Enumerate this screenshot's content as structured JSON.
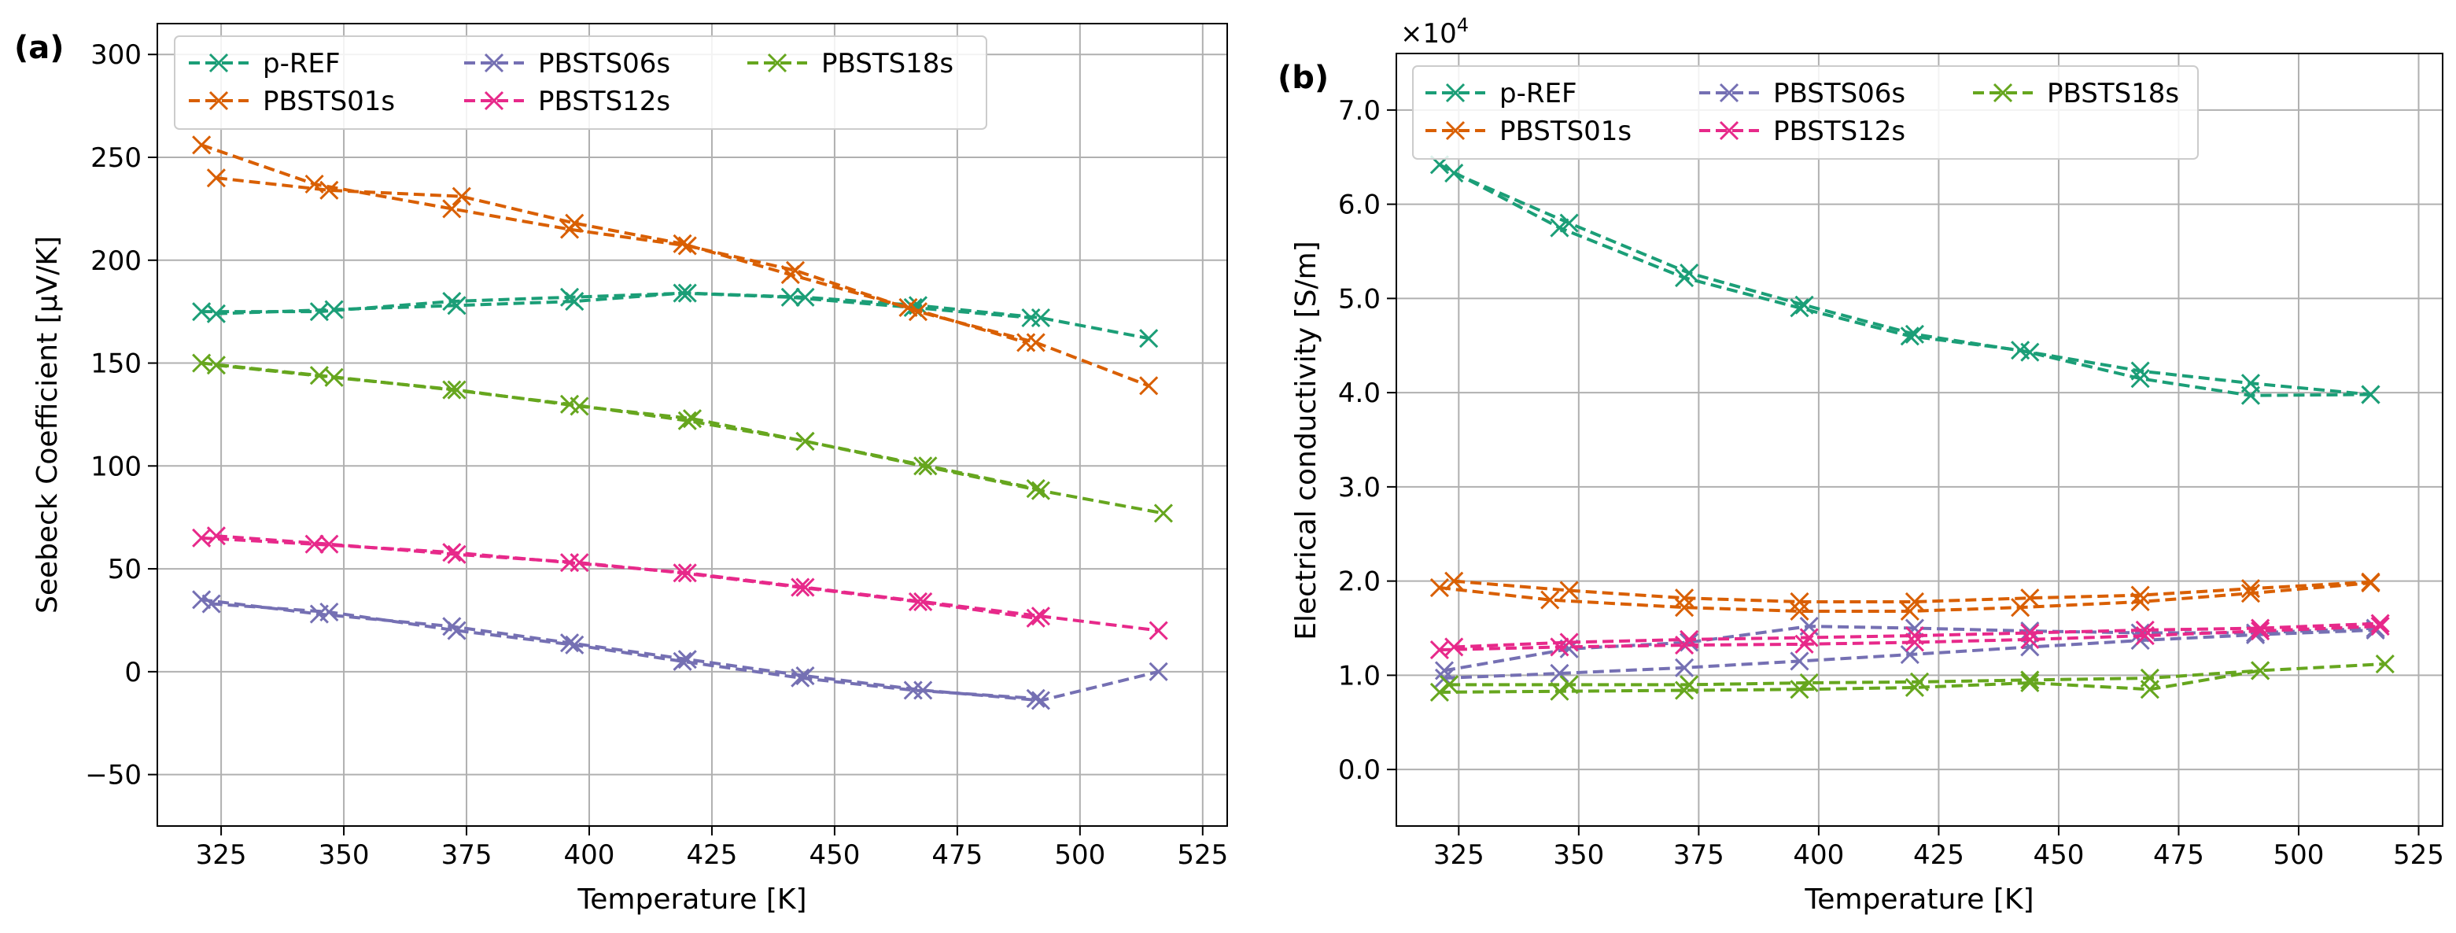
{
  "colors": {
    "p-REF": "#1b9e77",
    "PBSTS01s": "#d95f02",
    "PBSTS06s": "#7570b3",
    "PBSTS12s": "#e7298a",
    "PBSTS18s": "#66a61e"
  },
  "chart_data": [
    {
      "panel_label": "(a)",
      "type": "line",
      "marker": "x",
      "line_style": "dashed",
      "xlabel": "Temperature [K]",
      "ylabel": "Seebeck Coefficient [µV/K]",
      "xlim": [
        312,
        530
      ],
      "ylim": [
        -75,
        315
      ],
      "xticks": [
        325,
        350,
        375,
        400,
        425,
        450,
        475,
        500,
        525
      ],
      "yticks": [
        -50,
        0,
        50,
        100,
        150,
        200,
        250,
        300
      ],
      "ytick_labels": [
        "−50",
        "0",
        "50",
        "100",
        "150",
        "200",
        "250",
        "300"
      ],
      "grid": true,
      "legend_position": "upper-left",
      "legend_columns": 3,
      "series": [
        {
          "name": "p-REF",
          "curves": [
            {
              "x": [
                321,
                345,
                372,
                396,
                420,
                444,
                467,
                492,
                514
              ],
              "y": [
                175,
                175,
                180,
                182,
                184,
                182,
                178,
                172,
                162
              ]
            },
            {
              "x": [
                324,
                348,
                373,
                397,
                419,
                441,
                466,
                490
              ],
              "y": [
                174,
                176,
                178,
                180,
                184,
                182,
                177,
                172
              ]
            }
          ]
        },
        {
          "name": "PBSTS01s",
          "curves": [
            {
              "x": [
                321,
                344,
                372,
                396,
                420,
                442,
                467,
                491,
                514
              ],
              "y": [
                256,
                237,
                225,
                215,
                207,
                195,
                175,
                160,
                139
              ]
            },
            {
              "x": [
                324,
                347,
                374,
                397,
                419,
                441,
                465,
                489
              ],
              "y": [
                240,
                234,
                231,
                218,
                208,
                193,
                177,
                160
              ]
            }
          ]
        },
        {
          "name": "PBSTS06s",
          "curves": [
            {
              "x": [
                321,
                345,
                372,
                396,
                420,
                444,
                468,
                492,
                516
              ],
              "y": [
                35,
                28,
                22,
                14,
                6,
                -2,
                -9,
                -14,
                0
              ]
            },
            {
              "x": [
                323,
                347,
                373,
                397,
                419,
                443,
                466,
                491
              ],
              "y": [
                33,
                29,
                20,
                13,
                5,
                -3,
                -9,
                -13
              ]
            }
          ]
        },
        {
          "name": "PBSTS12s",
          "curves": [
            {
              "x": [
                321,
                344,
                372,
                396,
                420,
                444,
                468,
                492,
                516
              ],
              "y": [
                65,
                62,
                58,
                53,
                48,
                41,
                34,
                27,
                20
              ]
            },
            {
              "x": [
                324,
                347,
                373,
                398,
                419,
                443,
                467,
                491
              ],
              "y": [
                66,
                62,
                57,
                53,
                48,
                41,
                34,
                26
              ]
            }
          ]
        },
        {
          "name": "PBSTS18s",
          "curves": [
            {
              "x": [
                321,
                345,
                372,
                396,
                420,
                444,
                468,
                492,
                517
              ],
              "y": [
                150,
                144,
                137,
                130,
                122,
                112,
                100,
                88,
                77
              ]
            },
            {
              "x": [
                324,
                348,
                373,
                398,
                421,
                444,
                469,
                491
              ],
              "y": [
                149,
                143,
                137,
                129,
                123,
                112,
                100,
                89
              ]
            }
          ]
        }
      ]
    },
    {
      "panel_label": "(b)",
      "type": "line",
      "marker": "x",
      "line_style": "dashed",
      "xlabel": "Temperature [K]",
      "ylabel": "Electrical conductivity [S/m]",
      "scale_label": "×10",
      "scale_exponent": "4",
      "xlim": [
        312,
        530
      ],
      "ylim": [
        -0.6,
        7.6
      ],
      "xticks": [
        325,
        350,
        375,
        400,
        425,
        450,
        475,
        500,
        525
      ],
      "yticks": [
        0,
        1,
        2,
        3,
        4,
        5,
        6,
        7
      ],
      "ytick_labels": [
        "0.0",
        "1.0",
        "2.0",
        "3.0",
        "4.0",
        "5.0",
        "6.0",
        "7.0"
      ],
      "grid": true,
      "legend_position": "upper-left",
      "legend_columns": 3,
      "series": [
        {
          "name": "p-REF",
          "curves": [
            {
              "x": [
                321,
                346,
                372,
                396,
                419,
                442,
                467,
                490,
                515
              ],
              "y": [
                6.42,
                5.75,
                5.22,
                4.9,
                4.6,
                4.45,
                4.15,
                3.97,
                3.98
              ]
            },
            {
              "x": [
                324,
                348,
                373,
                397,
                420,
                444,
                467,
                490,
                515
              ],
              "y": [
                6.33,
                5.8,
                5.27,
                4.93,
                4.62,
                4.43,
                4.23,
                4.1,
                3.98
              ]
            }
          ]
        },
        {
          "name": "PBSTS01s",
          "curves": [
            {
              "x": [
                321,
                344,
                372,
                396,
                419,
                442,
                467,
                490,
                515
              ],
              "y": [
                1.93,
                1.8,
                1.72,
                1.68,
                1.68,
                1.72,
                1.78,
                1.87,
                1.98
              ]
            },
            {
              "x": [
                324,
                348,
                372,
                396,
                420,
                444,
                467,
                490,
                515
              ],
              "y": [
                2.0,
                1.9,
                1.82,
                1.78,
                1.78,
                1.82,
                1.85,
                1.92,
                1.99
              ]
            }
          ]
        },
        {
          "name": "PBSTS06s",
          "curves": [
            {
              "x": [
                322,
                346,
                372,
                396,
                419,
                444,
                467,
                491,
                516
              ],
              "y": [
                0.97,
                1.02,
                1.08,
                1.15,
                1.22,
                1.3,
                1.37,
                1.43,
                1.48
              ]
            },
            {
              "x": [
                322,
                348,
                373,
                398,
                420,
                444,
                467,
                491,
                516
              ],
              "y": [
                1.05,
                1.28,
                1.35,
                1.52,
                1.5,
                1.47,
                1.45,
                1.45,
                1.5
              ]
            }
          ]
        },
        {
          "name": "PBSTS12s",
          "curves": [
            {
              "x": [
                321,
                346,
                372,
                397,
                420,
                444,
                468,
                492,
                517
              ],
              "y": [
                1.27,
                1.3,
                1.32,
                1.33,
                1.35,
                1.38,
                1.42,
                1.47,
                1.52
              ]
            },
            {
              "x": [
                324,
                348,
                373,
                398,
                420,
                444,
                468,
                492,
                517
              ],
              "y": [
                1.3,
                1.35,
                1.38,
                1.4,
                1.42,
                1.45,
                1.48,
                1.5,
                1.55
              ]
            }
          ]
        },
        {
          "name": "PBSTS18s",
          "curves": [
            {
              "x": [
                321,
                346,
                372,
                396,
                420,
                444,
                469,
                492,
                518
              ],
              "y": [
                0.82,
                0.83,
                0.84,
                0.85,
                0.87,
                0.92,
                0.85,
                1.05,
                1.12
              ]
            },
            {
              "x": [
                323,
                348,
                373,
                398,
                421,
                444,
                469,
                492
              ],
              "y": [
                0.9,
                0.9,
                0.9,
                0.92,
                0.93,
                0.95,
                0.97,
                1.05
              ]
            }
          ]
        }
      ]
    }
  ]
}
